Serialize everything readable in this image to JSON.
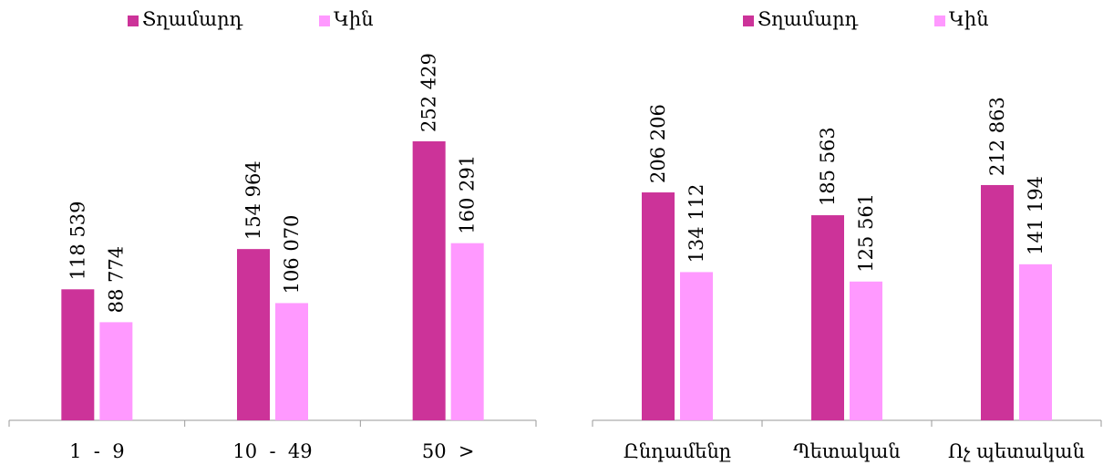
{
  "chart_data": [
    {
      "type": "bar",
      "categories": [
        "1  -  9",
        "10  -  49",
        "50  >"
      ],
      "series": [
        {
          "name": "Տղամարդ",
          "values": [
            118539,
            154964,
            252429
          ],
          "labels": [
            "118 539",
            "154 964",
            "252 429"
          ]
        },
        {
          "name": "Կին",
          "values": [
            88774,
            106070,
            160291
          ],
          "labels": [
            "88 774",
            "106 070",
            "160 291"
          ]
        }
      ],
      "ylim": [
        0,
        300000
      ],
      "grid": false,
      "legend": "top-left",
      "colors": [
        "#cc3399",
        "#ff99ff"
      ]
    },
    {
      "type": "bar",
      "categories": [
        "Ընդամենը",
        "Պետական",
        "Ոչ պետական"
      ],
      "series": [
        {
          "name": "Տղամարդ",
          "values": [
            206206,
            185563,
            212863
          ],
          "labels": [
            "206 206",
            "185 563",
            "212 863"
          ]
        },
        {
          "name": "Կին",
          "values": [
            134112,
            125561,
            141194
          ],
          "labels": [
            "134 112",
            "125 561",
            "141 194"
          ]
        }
      ],
      "ylim": [
        0,
        300000
      ],
      "grid": false,
      "legend": "top-left",
      "colors": [
        "#cc3399",
        "#ff99ff"
      ]
    }
  ]
}
